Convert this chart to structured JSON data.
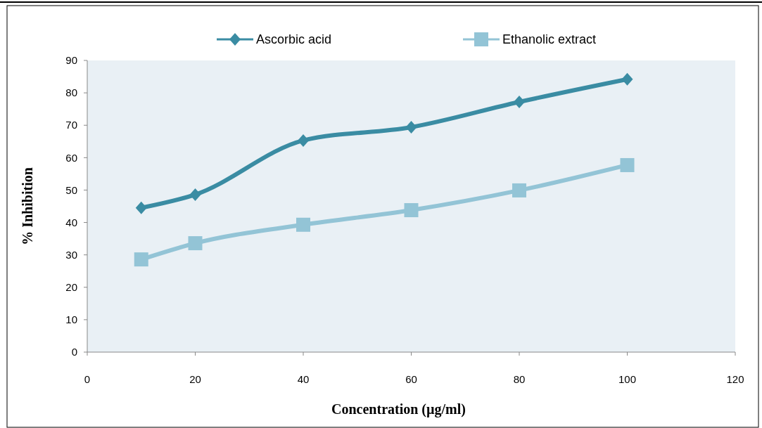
{
  "chart_data": {
    "type": "line",
    "xlabel": "Concentration (µg/ml)",
    "ylabel": "% Inhibition",
    "x": [
      10,
      20,
      40,
      60,
      80,
      100
    ],
    "series": [
      {
        "name": "Ascorbic acid",
        "color": "#3a8ca3",
        "marker": "diamond",
        "values": [
          44.5,
          48.6,
          65.3,
          69.4,
          77.2,
          84.2
        ]
      },
      {
        "name": "Ethanolic extract",
        "color": "#93c4d6",
        "marker": "square",
        "values": [
          28.6,
          33.6,
          39.3,
          43.8,
          49.9,
          57.7
        ]
      }
    ],
    "xlim": [
      0,
      120
    ],
    "xticks": [
      0,
      20,
      40,
      60,
      80,
      100,
      120
    ],
    "ylim": [
      0,
      90
    ],
    "yticks": [
      0,
      10,
      20,
      30,
      40,
      50,
      60,
      70,
      80,
      90
    ],
    "grid": false,
    "legend": "top",
    "line_style": "solid"
  }
}
